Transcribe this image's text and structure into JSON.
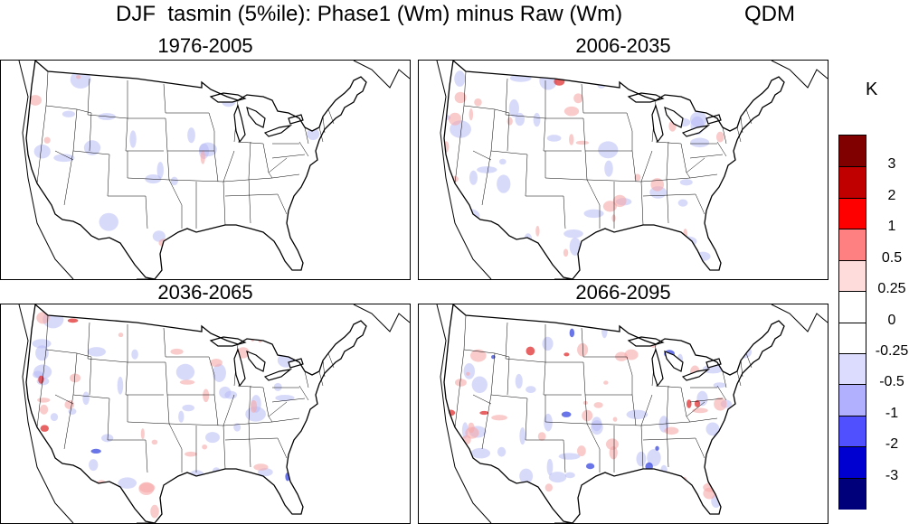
{
  "title": {
    "text": "DJF  tasmin (5%ile): Phase1 (Wm) minus Raw (Wm)",
    "method": "QDM"
  },
  "panels": [
    {
      "label": "1976-2005"
    },
    {
      "label": "2006-2035"
    },
    {
      "label": "2036-2065"
    },
    {
      "label": "2066-2095"
    }
  ],
  "colorbar": {
    "unit": "K",
    "labels": [
      "3",
      "2",
      "1",
      "0.5",
      "0.25",
      "0",
      "-0.25",
      "-0.5",
      "-1",
      "-2",
      "-3"
    ],
    "colors": [
      "#800000",
      "#c00000",
      "#ff0000",
      "#ff8080",
      "#ffdcdc",
      "#ffffff",
      "#ffffff",
      "#dcdcff",
      "#b0b0ff",
      "#5050ff",
      "#0000d0",
      "#00007a"
    ]
  },
  "map_colors": {
    "strong_red": "#e03030",
    "light_red": "#f7a8a8",
    "light_blue": "#b8bcf5",
    "strong_blue": "#3848e0",
    "boundary": "#000000"
  }
}
